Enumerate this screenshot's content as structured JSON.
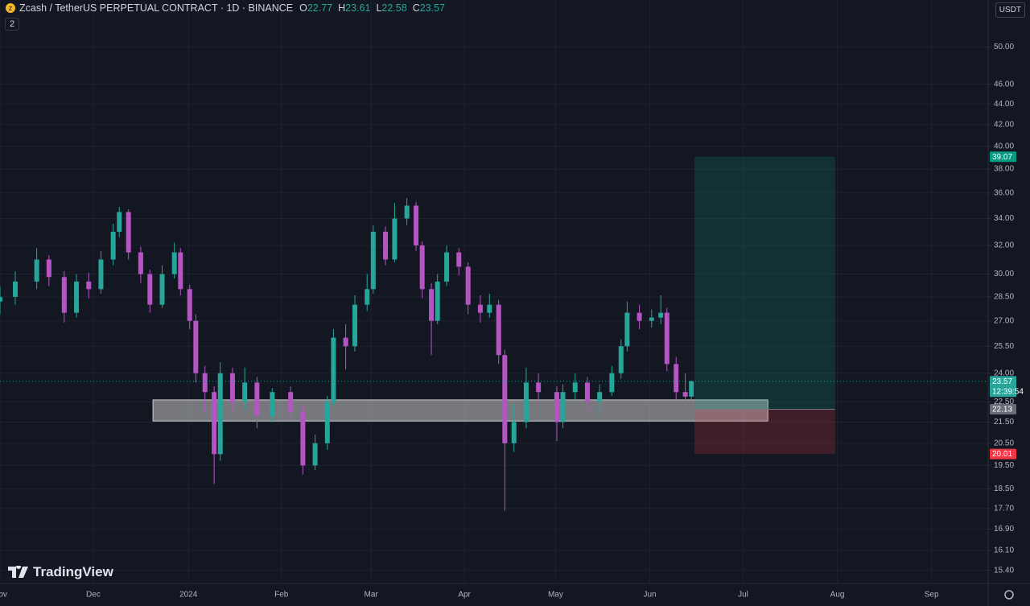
{
  "header": {
    "title": "Zcash / TetherUS PERPETUAL CONTRACT · 1D · BINANCE",
    "ohlc_labels": [
      "O",
      "H",
      "L",
      "C"
    ],
    "indicators": "2",
    "currency": "USDT",
    "logo": "TradingView",
    "countdown": "12:39:54"
  },
  "chart_data": {
    "type": "candlestick",
    "log_scale": true,
    "grid": true,
    "up_color": "#26a69a",
    "down_color": "#b455c3",
    "x": [
      0,
      5,
      12,
      16,
      21,
      25,
      29,
      33,
      37,
      39,
      42,
      46,
      49,
      53,
      57,
      59,
      62,
      64,
      67,
      70,
      72,
      76,
      80,
      84,
      89,
      95,
      99,
      103,
      107,
      109,
      113,
      116,
      120,
      122,
      126,
      129,
      133,
      136,
      138,
      141,
      143,
      146,
      150,
      153,
      157,
      160,
      163,
      165,
      168,
      172,
      176,
      182,
      184,
      188,
      192,
      196,
      200,
      203,
      205,
      209,
      213,
      216,
      218,
      221,
      224,
      226
    ],
    "open": [
      28.2,
      28.5,
      29.5,
      31.0,
      29.8,
      27.5,
      29.5,
      29.0,
      31.0,
      33.0,
      34.5,
      31.5,
      30.0,
      28.0,
      30.0,
      31.5,
      29.0,
      27.0,
      24.0,
      23.0,
      20.0,
      24.0,
      22.5,
      23.5,
      21.8,
      23.0,
      22.0,
      19.5,
      20.5,
      22.5,
      26.0,
      25.5,
      28.0,
      29.0,
      33.0,
      31.0,
      34.0,
      35.0,
      32.0,
      29.0,
      27.0,
      29.5,
      31.5,
      30.5,
      28.0,
      27.5,
      28.0,
      25.0,
      20.5,
      21.5,
      23.5,
      23.0,
      21.5,
      23.0,
      23.5,
      22.5,
      23.0,
      24.0,
      25.5,
      27.5,
      27.0,
      27.2,
      27.5,
      24.5,
      23.0,
      22.77
    ],
    "high": [
      29.2,
      30.2,
      31.8,
      31.3,
      30.2,
      30.0,
      30.1,
      31.6,
      33.6,
      34.9,
      34.7,
      31.9,
      30.3,
      30.6,
      32.2,
      31.8,
      29.3,
      27.4,
      24.4,
      23.3,
      24.6,
      24.3,
      24.3,
      23.8,
      23.2,
      23.3,
      22.3,
      20.9,
      22.8,
      26.5,
      26.8,
      28.6,
      30.0,
      33.5,
      33.4,
      35.2,
      35.6,
      35.3,
      32.3,
      29.4,
      30.0,
      32.0,
      31.8,
      30.8,
      28.6,
      28.7,
      28.3,
      25.3,
      22.4,
      24.3,
      24.0,
      23.3,
      23.4,
      24.0,
      23.8,
      23.4,
      24.4,
      25.9,
      28.2,
      28.0,
      27.7,
      28.6,
      27.8,
      24.9,
      24.0,
      23.61
    ],
    "low": [
      27.4,
      28.0,
      29.0,
      29.2,
      26.9,
      27.2,
      28.4,
      28.7,
      30.6,
      32.6,
      31.0,
      29.4,
      27.5,
      27.8,
      29.7,
      28.6,
      26.5,
      23.5,
      22.0,
      18.7,
      19.7,
      22.0,
      22.1,
      21.2,
      21.5,
      21.6,
      19.1,
      19.3,
      20.2,
      22.3,
      24.2,
      25.2,
      27.6,
      28.7,
      30.6,
      30.8,
      33.5,
      31.6,
      28.4,
      25.0,
      26.8,
      29.2,
      29.9,
      27.4,
      26.9,
      27.2,
      24.5,
      17.6,
      20.1,
      21.2,
      22.4,
      20.6,
      21.2,
      22.6,
      22.0,
      21.8,
      22.8,
      23.7,
      25.2,
      26.5,
      26.6,
      26.8,
      24.1,
      22.6,
      22.4,
      22.58
    ],
    "close": [
      28.5,
      29.5,
      31.0,
      29.8,
      27.5,
      29.5,
      29.0,
      31.0,
      33.0,
      34.5,
      31.5,
      30.0,
      28.0,
      30.0,
      31.5,
      29.0,
      27.0,
      24.0,
      23.0,
      20.0,
      24.0,
      22.5,
      23.5,
      21.8,
      23.0,
      22.0,
      19.5,
      20.5,
      22.5,
      26.0,
      25.5,
      28.0,
      29.0,
      33.0,
      31.0,
      34.0,
      35.0,
      32.0,
      29.0,
      27.0,
      29.5,
      31.5,
      30.5,
      28.0,
      27.5,
      28.0,
      25.0,
      20.5,
      21.5,
      23.5,
      23.0,
      21.5,
      23.0,
      23.5,
      22.5,
      23.0,
      24.0,
      25.5,
      27.5,
      27.0,
      27.2,
      27.5,
      24.5,
      23.0,
      22.77,
      23.57
    ],
    "xlim": [
      0,
      323
    ],
    "xticks": [
      {
        "value": 0,
        "label": "Nov"
      },
      {
        "value": 30.5,
        "label": "Dec"
      },
      {
        "value": 61.6,
        "label": "2024"
      },
      {
        "value": 92,
        "label": "Feb"
      },
      {
        "value": 121.3,
        "label": "Mar"
      },
      {
        "value": 151.8,
        "label": "Apr"
      },
      {
        "value": 181.6,
        "label": "May"
      },
      {
        "value": 212.4,
        "label": "Jun"
      },
      {
        "value": 242.9,
        "label": "Jul"
      },
      {
        "value": 273.7,
        "label": "Aug"
      },
      {
        "value": 304.5,
        "label": "Sep"
      }
    ],
    "ylim": [
      14.95,
      55.6
    ],
    "yticks": [
      {
        "value": 15.4,
        "label": "15.40"
      },
      {
        "value": 16.1,
        "label": "16.10"
      },
      {
        "value": 16.9,
        "label": "16.90"
      },
      {
        "value": 17.7,
        "label": "17.70"
      },
      {
        "value": 18.5,
        "label": "18.50"
      },
      {
        "value": 19.5,
        "label": "19.50"
      },
      {
        "value": 20.5,
        "label": "20.50"
      },
      {
        "value": 21.5,
        "label": "21.50"
      },
      {
        "value": 22.5,
        "label": "22.50"
      },
      {
        "value": 24,
        "label": "24.00"
      },
      {
        "value": 25.5,
        "label": "25.50"
      },
      {
        "value": 27,
        "label": "27.00"
      },
      {
        "value": 28.5,
        "label": "28.50"
      },
      {
        "value": 30,
        "label": "30.00"
      },
      {
        "value": 32,
        "label": "32.00"
      },
      {
        "value": 34,
        "label": "34.00"
      },
      {
        "value": 36,
        "label": "36.00"
      },
      {
        "value": 38,
        "label": "38.00"
      },
      {
        "value": 40,
        "label": "40.00"
      },
      {
        "value": 42,
        "label": "42.00"
      },
      {
        "value": 44,
        "label": "44.00"
      },
      {
        "value": 46,
        "label": "46.00"
      },
      {
        "value": 50,
        "label": "50.00"
      }
    ],
    "zone": {
      "low": 21.55,
      "high": 22.6,
      "x": [
        50,
        251
      ]
    },
    "position": {
      "target": 39.07,
      "entry": 22.13,
      "stop": 20.01,
      "x": [
        227,
        273
      ]
    }
  }
}
